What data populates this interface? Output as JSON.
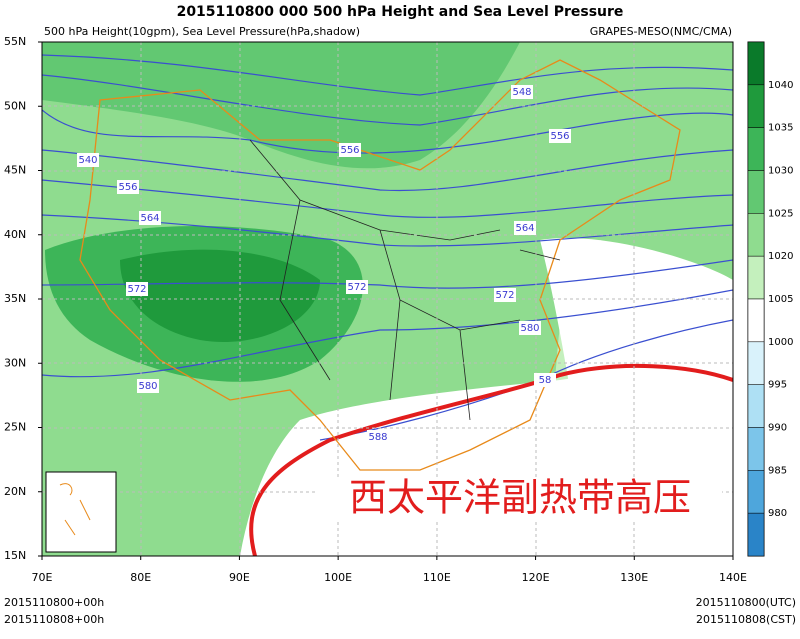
{
  "header": {
    "title": "2015110800 000 500 hPa Height  and Sea Level Pressure",
    "left": "500 hPa Height(10gpm), Sea Level Pressure(hPa,shadow)",
    "right": "GRAPES-MESO(NMC/CMA)"
  },
  "map": {
    "lat_labels": [
      "55N",
      "50N",
      "45N",
      "40N",
      "35N",
      "30N",
      "25N",
      "20N",
      "15N"
    ],
    "lon_labels": [
      "70E",
      "80E",
      "90E",
      "100E",
      "110E",
      "120E",
      "130E",
      "140E"
    ],
    "contour_labels": [
      "540",
      "548",
      "556",
      "556",
      "556",
      "564",
      "564",
      "572",
      "572",
      "572",
      "580",
      "580",
      "58",
      "588"
    ],
    "annotation": "西太平洋副热带高压"
  },
  "colorbar": {
    "labels": [
      "1040",
      "1035",
      "1030",
      "1025",
      "1020",
      "1005",
      "1000",
      "995",
      "990",
      "985",
      "980"
    ],
    "colors": [
      "#0a7a2a",
      "#1f9a3c",
      "#3db558",
      "#62c872",
      "#8fdc8f",
      "#c4f0bd",
      "#ffffff",
      "#d9f2fb",
      "#aee0f4",
      "#7cc5ea",
      "#4ea6dc",
      "#2a84c8"
    ]
  },
  "footer": {
    "left1": "2015110800+00h",
    "left2": "2015110808+00h",
    "right1": "2015110800(UTC)",
    "right2": "2015110808(CST)"
  }
}
